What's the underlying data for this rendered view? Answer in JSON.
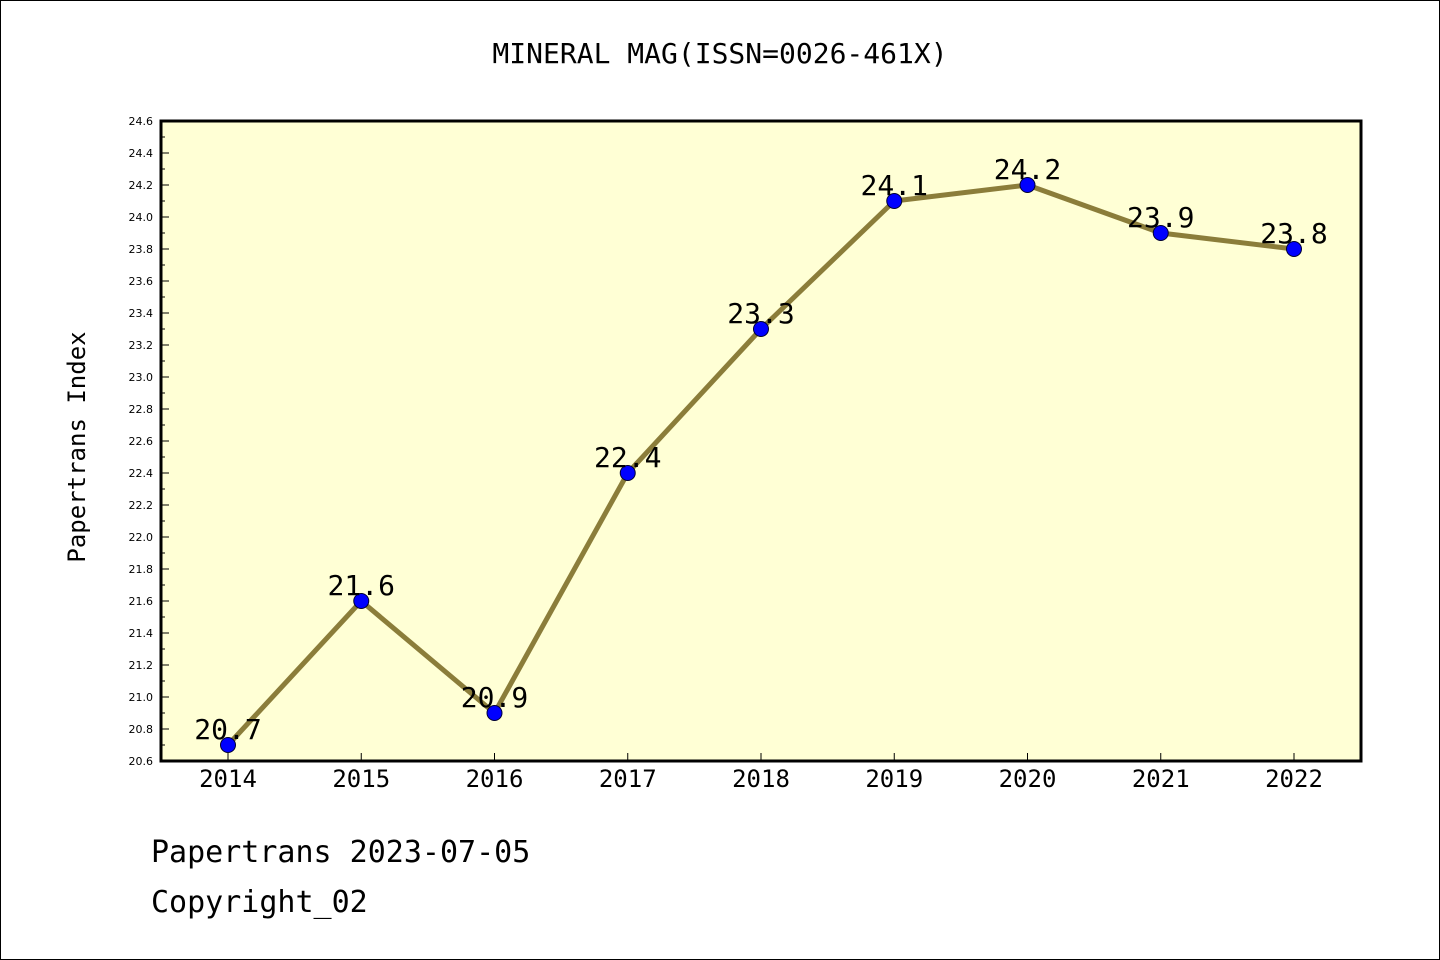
{
  "chart_data": {
    "type": "line",
    "title": "MINERAL MAG(ISSN=0026-461X)",
    "xlabel": "",
    "ylabel": "Papertrans Index",
    "categories": [
      "2014",
      "2015",
      "2016",
      "2017",
      "2018",
      "2019",
      "2020",
      "2021",
      "2022"
    ],
    "series": [
      {
        "values": [
          20.7,
          21.6,
          20.9,
          22.4,
          23.3,
          24.1,
          24.2,
          23.9,
          23.8
        ],
        "data_labels": [
          "20.7",
          "21.6",
          "20.9",
          "22.4",
          "23.3",
          "24.1",
          "24.2",
          "23.9",
          "23.8"
        ],
        "line_color": "#8b7d3a",
        "marker_color": "#0000ff"
      }
    ],
    "ylim": [
      20.6,
      24.6
    ],
    "yticks": [
      "20.6",
      "20.8",
      "21.0",
      "21.2",
      "21.4",
      "21.6",
      "21.8",
      "22.0",
      "22.2",
      "22.4",
      "22.6",
      "22.8",
      "23.0",
      "23.2",
      "23.4",
      "23.6",
      "23.8",
      "24.0",
      "24.2",
      "24.4",
      "24.6"
    ],
    "grid": false,
    "legend": "none",
    "plot_background": "#ffffd5"
  },
  "footer": {
    "date_text": "Papertrans 2023-07-05",
    "copyright_text": "Copyright_02"
  }
}
